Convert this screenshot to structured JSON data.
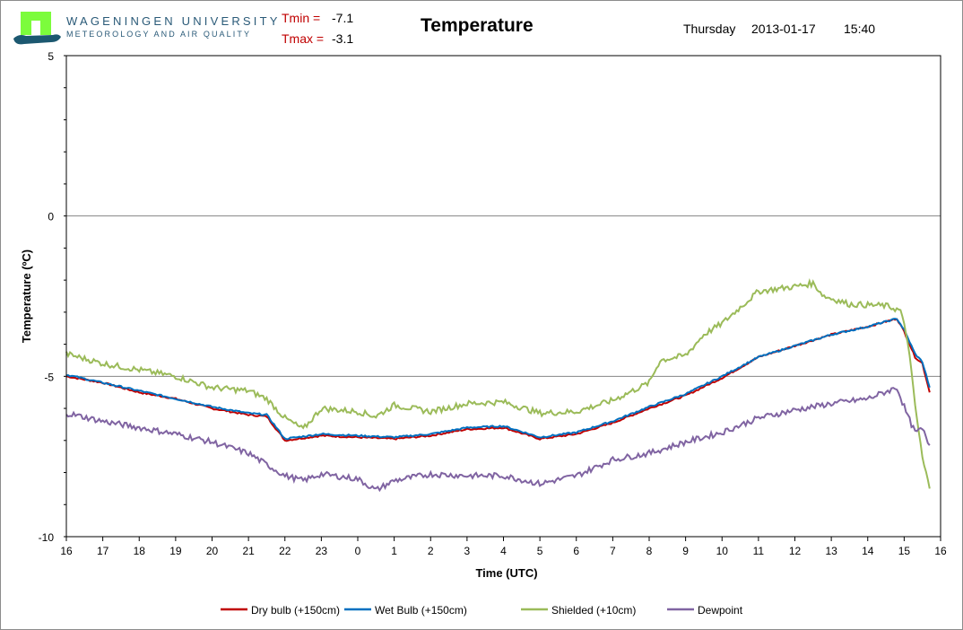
{
  "header": {
    "university": "WAGENINGEN UNIVERSITY",
    "department": "METEOROLOGY AND AIR QUALITY",
    "tmin_label": "Tmin =",
    "tmin_value": "-7.1",
    "tmax_label": "Tmax =",
    "tmax_value": "-3.1",
    "day": "Thursday",
    "date": "2013-01-17",
    "time": "15:40"
  },
  "chart_data": {
    "type": "line",
    "title": "Temperature",
    "xlabel": "Time (UTC)",
    "ylabel": "Temperature (ºC)",
    "ylim": [
      -10,
      5
    ],
    "yticks": [
      "5",
      "0",
      "-5",
      "-10"
    ],
    "ytick_values": [
      5,
      0,
      -5,
      -10
    ],
    "xlim_hours": [
      0,
      24
    ],
    "xtick_labels": [
      "16",
      "17",
      "18",
      "19",
      "20",
      "21",
      "22",
      "23",
      "0",
      "1",
      "2",
      "3",
      "4",
      "5",
      "6",
      "7",
      "8",
      "9",
      "10",
      "11",
      "12",
      "13",
      "14",
      "15",
      "16"
    ],
    "grid": "horizontal at 0 and -5",
    "legend_placement": "bottom",
    "series": [
      {
        "name": "Dry bulb (+150cm)",
        "color": "#c00000",
        "x": [
          0,
          1,
          2,
          3,
          4,
          5,
          5.5,
          6,
          7,
          8,
          9,
          10,
          11,
          12,
          13,
          14,
          15,
          16,
          17,
          18,
          19,
          20,
          21,
          22,
          22.8,
          23,
          23.3,
          23.5,
          23.7
        ],
        "y": [
          -5.0,
          -5.2,
          -5.5,
          -5.7,
          -6.0,
          -6.2,
          -6.25,
          -7.0,
          -6.85,
          -6.9,
          -6.95,
          -6.85,
          -6.65,
          -6.6,
          -6.95,
          -6.8,
          -6.45,
          -6.0,
          -5.6,
          -5.05,
          -4.4,
          -4.05,
          -3.7,
          -3.45,
          -3.2,
          -3.6,
          -4.4,
          -4.6,
          -5.5
        ]
      },
      {
        "name": "Wet Bulb (+150cm)",
        "color": "#0070c0",
        "x": [
          0,
          1,
          2,
          3,
          4,
          5,
          5.5,
          6,
          7,
          8,
          9,
          10,
          11,
          12,
          13,
          14,
          15,
          16,
          17,
          18,
          19,
          20,
          21,
          22,
          22.8,
          23,
          23.3,
          23.5,
          23.7
        ],
        "y": [
          -4.95,
          -5.2,
          -5.45,
          -5.7,
          -5.95,
          -6.15,
          -6.2,
          -6.95,
          -6.8,
          -6.85,
          -6.9,
          -6.8,
          -6.6,
          -6.55,
          -6.9,
          -6.75,
          -6.4,
          -5.95,
          -5.55,
          -5.0,
          -4.4,
          -4.05,
          -3.7,
          -3.45,
          -3.2,
          -3.55,
          -4.3,
          -4.55,
          -5.35
        ]
      },
      {
        "name": "Shielded (+10cm)",
        "color": "#9bbb59",
        "x": [
          0,
          1,
          2,
          3,
          4,
          5,
          5.5,
          6,
          6.5,
          7,
          8,
          8.5,
          9,
          10,
          11,
          12,
          13,
          14,
          15,
          16,
          16.3,
          17,
          17.5,
          18,
          18.5,
          19,
          20,
          20.5,
          20.8,
          21.5,
          22.5,
          22.9,
          23.1,
          23.3,
          23.5,
          23.7
        ],
        "y": [
          -4.3,
          -4.6,
          -4.8,
          -5.0,
          -5.35,
          -5.45,
          -5.7,
          -6.3,
          -6.65,
          -6.0,
          -6.1,
          -6.25,
          -5.9,
          -6.1,
          -5.85,
          -5.8,
          -6.15,
          -6.1,
          -5.75,
          -5.2,
          -4.5,
          -4.35,
          -3.7,
          -3.35,
          -2.85,
          -2.35,
          -2.2,
          -2.1,
          -2.5,
          -2.75,
          -2.8,
          -2.95,
          -3.9,
          -5.9,
          -7.55,
          -8.5
        ]
      },
      {
        "name": "Dewpoint",
        "color": "#8064a2",
        "x": [
          0,
          1,
          2,
          3,
          4,
          5,
          6,
          6.5,
          7,
          8,
          8.5,
          9,
          10,
          11,
          12,
          13,
          14,
          15,
          16,
          17,
          18,
          19,
          20,
          21,
          22,
          22.8,
          23.1,
          23.3,
          23.5,
          23.7
        ],
        "y": [
          -6.15,
          -6.4,
          -6.6,
          -6.8,
          -7.05,
          -7.4,
          -8.1,
          -8.25,
          -8.05,
          -8.2,
          -8.55,
          -8.25,
          -8.05,
          -8.1,
          -8.1,
          -8.35,
          -8.1,
          -7.6,
          -7.4,
          -7.05,
          -6.75,
          -6.3,
          -6.05,
          -5.85,
          -5.7,
          -5.35,
          -6.25,
          -6.75,
          -6.65,
          -7.15
        ]
      }
    ]
  }
}
